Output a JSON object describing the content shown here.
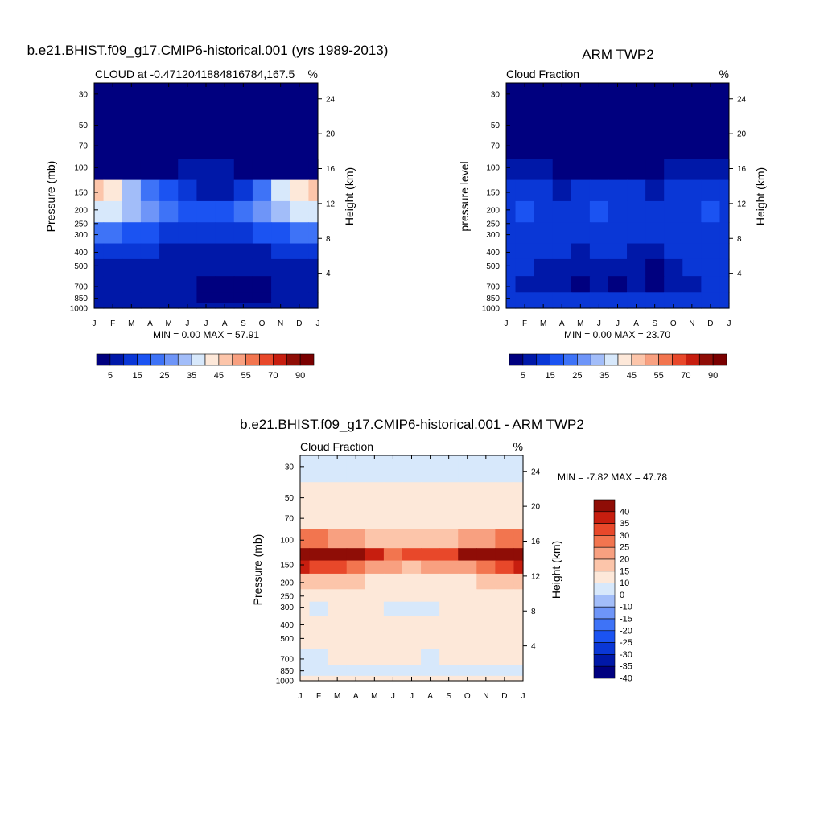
{
  "figure": {
    "panels": [
      {
        "title": "b.e21.BHIST.f09_g17.CMIP6-historical.001 (yrs 1989-2013)",
        "left_label": "CLOUD at -0.4712041884816784,167.5",
        "right_label": "%",
        "ylabel": "Pressure (mb)",
        "ylabel_right": "Height (km)",
        "stats": "MIN =   0.00 MAX =  57.91"
      },
      {
        "title": "ARM TWP2",
        "left_label": "Cloud Fraction",
        "right_label": "%",
        "ylabel": "pressure level",
        "ylabel_right": "Height (km)",
        "stats": "MIN =   0.00 MAX =  23.70"
      },
      {
        "title": "b.e21.BHIST.f09_g17.CMIP6-historical.001 - ARM TWP2",
        "left_label": "Cloud Fraction",
        "right_label": "%",
        "ylabel": "Pressure (mb)",
        "ylabel_right": "Height (km)",
        "stats": "MIN =  -7.82 MAX =  47.78"
      }
    ]
  },
  "chart_data": [
    {
      "type": "heatmap",
      "title": "b.e21.BHIST.f09_g17.CMIP6-historical.001 (yrs 1989-2013)",
      "subtitle": "CLOUD at -0.4712041884816784,167.5",
      "units": "%",
      "xlabel": "",
      "ylabel": "Pressure (mb)",
      "ylabel_right": "Height (km)",
      "x_ticks": [
        "J",
        "F",
        "M",
        "A",
        "M",
        "J",
        "J",
        "A",
        "S",
        "O",
        "N",
        "D",
        "J"
      ],
      "y_ticks": [
        30,
        50,
        70,
        100,
        150,
        200,
        250,
        300,
        400,
        500,
        700,
        850,
        1000
      ],
      "y_scale": "log",
      "ylim": [
        1000,
        25
      ],
      "y_right_ticks": [
        24,
        20,
        16,
        12,
        8,
        4
      ],
      "min": 0.0,
      "max": 57.91,
      "colorbar_labels": [
        "5",
        "15",
        "25",
        "35",
        "45",
        "55",
        "70",
        "90"
      ],
      "colorbar_colors": [
        "#00007f",
        "#0018a8",
        "#0a37d6",
        "#1b53f2",
        "#3e73f7",
        "#6e95f8",
        "#a2bdf9",
        "#d7e8fb",
        "#fde8d9",
        "#fcc5aa",
        "#f8a080",
        "#f2754f",
        "#e8482a",
        "#c71e0f",
        "#8f0d06",
        "#7a0000"
      ],
      "levels": [
        100,
        150,
        200,
        300,
        400,
        500,
        700,
        850,
        1000
      ],
      "values": [
        [
          2,
          2,
          2,
          3,
          4,
          5,
          5,
          5,
          4,
          3,
          2,
          2,
          2
        ],
        [
          45,
          40,
          30,
          22,
          15,
          10,
          8,
          9,
          14,
          24,
          36,
          42,
          46
        ],
        [
          38,
          36,
          30,
          25,
          21,
          19,
          18,
          19,
          21,
          25,
          30,
          35,
          38
        ],
        [
          24,
          22,
          19,
          16,
          14,
          13,
          12,
          13,
          14,
          16,
          19,
          22,
          24
        ],
        [
          11,
          11,
          10,
          10,
          9,
          8,
          8,
          8,
          9,
          9,
          10,
          11,
          11
        ],
        [
          9,
          9,
          8,
          8,
          8,
          7,
          7,
          7,
          7,
          8,
          8,
          9,
          9
        ],
        [
          7,
          7,
          6,
          6,
          6,
          5,
          4,
          3,
          3,
          4,
          6,
          7,
          7
        ],
        [
          5,
          5,
          5,
          5,
          5,
          5,
          4,
          3,
          3,
          4,
          5,
          5,
          5
        ],
        [
          5,
          5,
          5,
          5,
          5,
          5,
          5,
          5,
          5,
          5,
          5,
          5,
          5
        ]
      ]
    },
    {
      "type": "heatmap",
      "title": "ARM TWP2",
      "subtitle": "Cloud Fraction",
      "units": "%",
      "xlabel": "",
      "ylabel": "pressure level",
      "ylabel_right": "Height (km)",
      "x_ticks": [
        "J",
        "F",
        "M",
        "A",
        "M",
        "J",
        "J",
        "A",
        "S",
        "O",
        "N",
        "D",
        "J"
      ],
      "y_ticks": [
        30,
        50,
        70,
        100,
        150,
        200,
        250,
        300,
        400,
        500,
        700,
        850,
        1000
      ],
      "y_scale": "log",
      "ylim": [
        1000,
        25
      ],
      "y_right_ticks": [
        24,
        20,
        16,
        12,
        8,
        4
      ],
      "min": 0.0,
      "max": 23.7,
      "colorbar_labels": [
        "5",
        "15",
        "25",
        "35",
        "45",
        "55",
        "70",
        "90"
      ],
      "colorbar_colors": [
        "#00007f",
        "#0018a8",
        "#0a37d6",
        "#1b53f2",
        "#3e73f7",
        "#6e95f8",
        "#a2bdf9",
        "#d7e8fb",
        "#fde8d9",
        "#fcc5aa",
        "#f8a080",
        "#f2754f",
        "#e8482a",
        "#c71e0f",
        "#8f0d06",
        "#7a0000"
      ],
      "levels": [
        100,
        150,
        200,
        300,
        400,
        500,
        700,
        850,
        1000
      ],
      "values": [
        [
          6,
          6,
          5,
          4,
          4,
          4,
          4,
          4,
          4,
          5,
          6,
          6,
          6
        ],
        [
          12,
          11,
          10,
          9,
          10,
          10,
          10,
          10,
          9,
          10,
          11,
          12,
          12
        ],
        [
          13,
          16,
          12,
          11,
          13,
          15,
          13,
          12,
          11,
          12,
          14,
          15,
          13
        ],
        [
          12,
          14,
          12,
          11,
          12,
          13,
          12,
          11,
          11,
          12,
          13,
          14,
          12
        ],
        [
          11,
          11,
          10,
          10,
          9,
          10,
          10,
          9,
          7,
          10,
          11,
          11,
          11
        ],
        [
          11,
          10,
          9,
          9,
          8,
          8,
          8,
          8,
          4,
          8,
          10,
          11,
          11
        ],
        [
          10,
          9,
          8,
          8,
          4,
          9,
          4,
          8,
          3,
          7,
          9,
          10,
          10
        ],
        [
          11,
          10,
          10,
          10,
          10,
          10,
          10,
          10,
          10,
          10,
          10,
          11,
          11
        ],
        [
          14,
          14,
          14,
          14,
          14,
          14,
          14,
          14,
          14,
          14,
          14,
          14,
          14
        ]
      ]
    },
    {
      "type": "heatmap",
      "title": "b.e21.BHIST.f09_g17.CMIP6-historical.001 - ARM TWP2",
      "subtitle": "Cloud Fraction",
      "units": "%",
      "xlabel": "",
      "ylabel": "Pressure (mb)",
      "ylabel_right": "Height (km)",
      "x_ticks": [
        "J",
        "F",
        "M",
        "A",
        "M",
        "J",
        "J",
        "A",
        "S",
        "O",
        "N",
        "D",
        "J"
      ],
      "y_ticks": [
        30,
        50,
        70,
        100,
        150,
        200,
        250,
        300,
        400,
        500,
        700,
        850,
        1000
      ],
      "y_scale": "log",
      "ylim": [
        1000,
        25
      ],
      "y_right_ticks": [
        24,
        20,
        16,
        12,
        8,
        4
      ],
      "min": -7.82,
      "max": 47.78,
      "colorbar_labels": [
        "40",
        "35",
        "30",
        "25",
        "20",
        "15",
        "10",
        "0",
        "-10",
        "-15",
        "-20",
        "-25",
        "-30",
        "-35",
        "-40"
      ],
      "colorbar_colors": [
        "#8f0d06",
        "#c71e0f",
        "#e8482a",
        "#f2754f",
        "#f8a080",
        "#fcc5aa",
        "#fde8d9",
        "#d7e8fb",
        "#a2bdf9",
        "#6e95f8",
        "#3e73f7",
        "#1b53f2",
        "#0a37d6",
        "#0018a8",
        "#00007f"
      ],
      "levels": [
        30,
        50,
        70,
        100,
        130,
        150,
        200,
        250,
        300,
        400,
        500,
        700,
        850,
        1000
      ],
      "values": [
        [
          -2,
          -2,
          -2,
          -2,
          -2,
          -2,
          -2,
          -2,
          -2,
          -2,
          -2,
          -2,
          -2
        ],
        [
          2,
          2,
          2,
          2,
          2,
          2,
          2,
          2,
          2,
          2,
          2,
          2,
          2
        ],
        [
          5,
          5,
          4,
          4,
          4,
          4,
          4,
          4,
          4,
          4,
          4,
          5,
          5
        ],
        [
          22,
          20,
          18,
          16,
          14,
          13,
          13,
          13,
          14,
          16,
          18,
          21,
          23
        ],
        [
          42,
          41,
          40,
          38,
          33,
          24,
          26,
          27,
          25,
          35,
          38,
          41,
          44
        ],
        [
          30,
          28,
          25,
          22,
          18,
          15,
          14,
          15,
          16,
          18,
          22,
          27,
          31
        ],
        [
          12,
          11,
          10,
          10,
          9,
          8,
          7,
          8,
          8,
          9,
          10,
          11,
          12
        ],
        [
          5,
          5,
          4,
          4,
          4,
          4,
          4,
          4,
          4,
          4,
          4,
          5,
          5
        ],
        [
          4,
          -2,
          4,
          4,
          4,
          -2,
          -2,
          -2,
          3,
          4,
          4,
          4,
          4
        ],
        [
          3,
          3,
          3,
          5,
          3,
          3,
          3,
          3,
          3,
          3,
          3,
          3,
          3
        ],
        [
          2,
          2,
          2,
          2,
          2,
          2,
          2,
          2,
          2,
          2,
          2,
          2,
          2
        ],
        [
          -2,
          -2,
          3,
          3,
          2,
          2,
          2,
          -2,
          3,
          3,
          2,
          2,
          2
        ],
        [
          -2,
          -2,
          -2,
          -2,
          -2,
          -2,
          -2,
          -2,
          -2,
          -2,
          -2,
          -2,
          -2
        ],
        [
          2,
          2,
          2,
          2,
          2,
          2,
          2,
          2,
          2,
          2,
          2,
          2,
          2
        ]
      ]
    }
  ]
}
